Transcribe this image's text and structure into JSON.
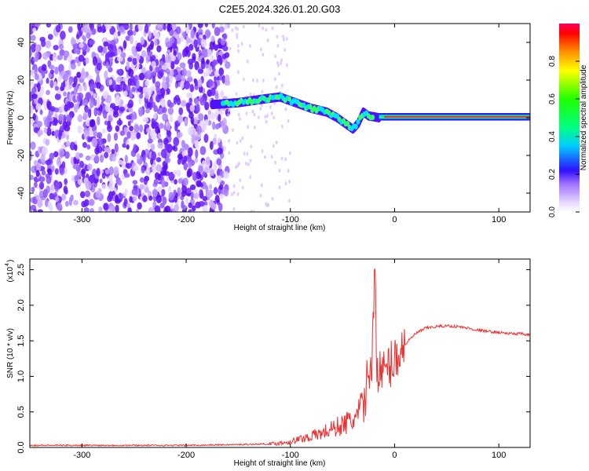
{
  "figure": {
    "title": "C2E5.2024.326.01.20.G03"
  },
  "chart_data": [
    {
      "type": "heatmap",
      "title": "C2E5.2024.326.01.20.G03",
      "xlabel": "Height of straight line (km)",
      "ylabel": "Frequency (Hz)",
      "xlim": [
        -350,
        130
      ],
      "ylim": [
        -50,
        50
      ],
      "xticks": [
        -300,
        -200,
        -100,
        0,
        100
      ],
      "yticks": [
        -40,
        -20,
        0,
        20,
        40
      ],
      "colorbar": {
        "label": "Normalized spectral amplitude",
        "range": [
          0,
          1
        ],
        "ticks": [
          0.0,
          0.2,
          0.4,
          0.6,
          0.8
        ],
        "colormap": "rainbow (light purple to red)"
      },
      "features": {
        "noise_region_x": [
          -350,
          -160
        ],
        "signal_track": [
          {
            "x": -175,
            "y": 7
          },
          {
            "x": -150,
            "y": 8
          },
          {
            "x": -125,
            "y": 10
          },
          {
            "x": -110,
            "y": 11
          },
          {
            "x": -95,
            "y": 8
          },
          {
            "x": -80,
            "y": 5
          },
          {
            "x": -65,
            "y": 3
          },
          {
            "x": -55,
            "y": 0
          },
          {
            "x": -45,
            "y": -4
          },
          {
            "x": -40,
            "y": -6
          },
          {
            "x": -35,
            "y": -3
          },
          {
            "x": -30,
            "y": 3
          },
          {
            "x": -25,
            "y": 1
          },
          {
            "x": -15,
            "y": 0
          },
          {
            "x": 0,
            "y": 0.5
          },
          {
            "x": 50,
            "y": 0.5
          },
          {
            "x": 100,
            "y": 0.5
          },
          {
            "x": 130,
            "y": 0.5
          }
        ]
      }
    },
    {
      "type": "line",
      "xlabel": "Height of straight line (km)",
      "ylabel": "SNR (10 * v/v)",
      "y_scale_label": "(x10",
      "y_scale_exponent": "4",
      "xlim": [
        -350,
        130
      ],
      "ylim": [
        0,
        2.65
      ],
      "xticks": [
        -300,
        -200,
        -100,
        0,
        100
      ],
      "yticks": [
        0.0,
        0.5,
        1.0,
        1.5,
        2.0,
        2.5
      ],
      "series": [
        {
          "color": "#ee3030",
          "points": [
            [
              -350,
              0.03
            ],
            [
              -300,
              0.03
            ],
            [
              -250,
              0.03
            ],
            [
              -200,
              0.03
            ],
            [
              -150,
              0.04
            ],
            [
              -120,
              0.05
            ],
            [
              -110,
              0.06
            ],
            [
              -100,
              0.08
            ],
            [
              -90,
              0.12
            ],
            [
              -80,
              0.16
            ],
            [
              -70,
              0.2
            ],
            [
              -60,
              0.26
            ],
            [
              -50,
              0.32
            ],
            [
              -40,
              0.38
            ],
            [
              -35,
              0.45
            ],
            [
              -30,
              0.6
            ],
            [
              -27,
              0.85
            ],
            [
              -24,
              1.1
            ],
            [
              -21,
              1.35
            ],
            [
              -19,
              2.65
            ],
            [
              -17,
              1.2
            ],
            [
              -15,
              1.05
            ],
            [
              -10,
              1.05
            ],
            [
              -5,
              1.15
            ],
            [
              0,
              1.25
            ],
            [
              10,
              1.45
            ],
            [
              20,
              1.6
            ],
            [
              30,
              1.68
            ],
            [
              40,
              1.7
            ],
            [
              50,
              1.71
            ],
            [
              60,
              1.7
            ],
            [
              70,
              1.68
            ],
            [
              80,
              1.65
            ],
            [
              90,
              1.63
            ],
            [
              100,
              1.62
            ],
            [
              110,
              1.6
            ],
            [
              120,
              1.6
            ],
            [
              130,
              1.58
            ]
          ]
        }
      ]
    }
  ]
}
